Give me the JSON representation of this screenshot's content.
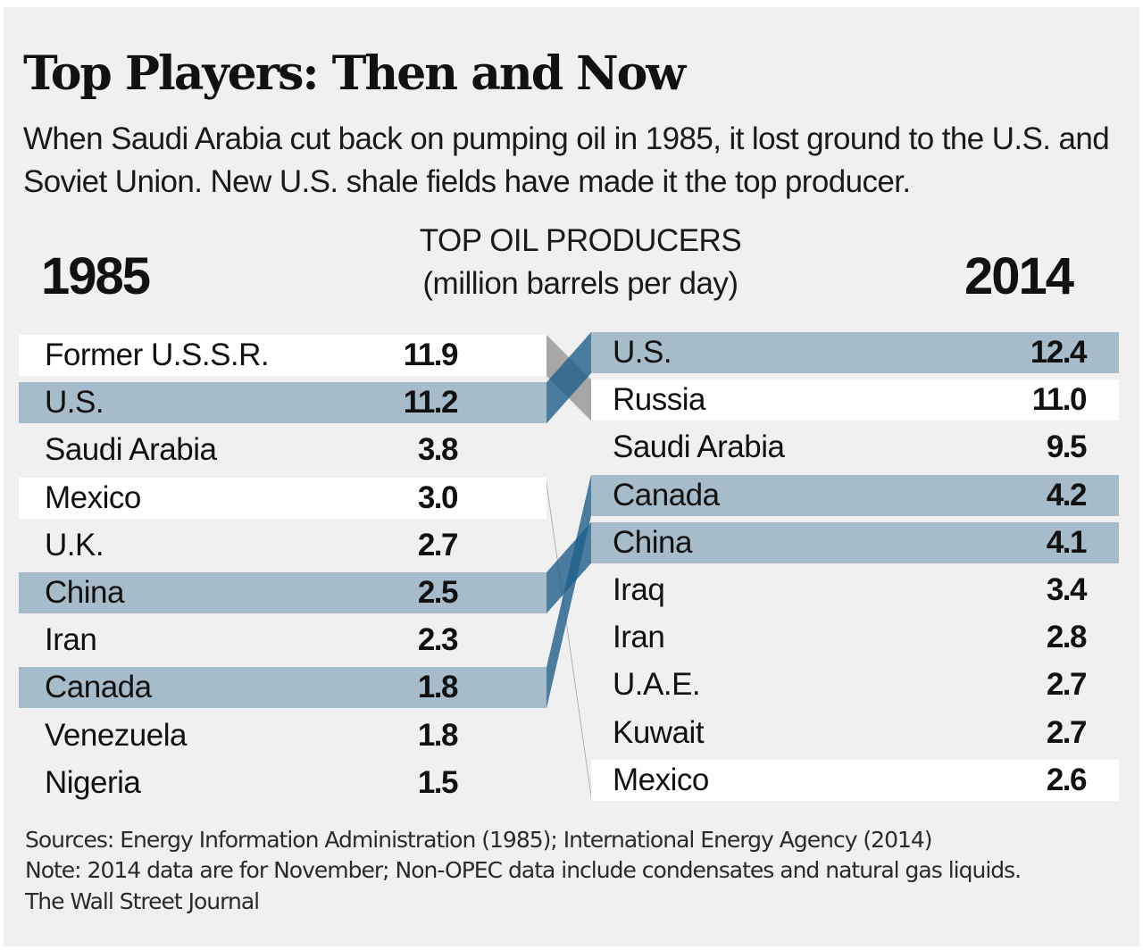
{
  "title": "Top Players: Then and Now",
  "subtitle": "When Saudi Arabia cut back on pumping oil in 1985, it lost ground to the U.S. and Soviet Union. New U.S. shale fields have made it the top producer.",
  "chart_data": {
    "type": "table",
    "title": "TOP OIL PRODUCERS",
    "unit": "(million barrels per day)",
    "left_year": "1985",
    "right_year": "2014",
    "left": [
      {
        "name": "Former U.S.S.R.",
        "value": "11.9",
        "style": "white"
      },
      {
        "name": "U.S.",
        "value": "11.2",
        "style": "blue"
      },
      {
        "name": "Saudi Arabia",
        "value": "3.8",
        "style": "none"
      },
      {
        "name": "Mexico",
        "value": "3.0",
        "style": "white"
      },
      {
        "name": "U.K.",
        "value": "2.7",
        "style": "none"
      },
      {
        "name": "China",
        "value": "2.5",
        "style": "blue"
      },
      {
        "name": "Iran",
        "value": "2.3",
        "style": "none"
      },
      {
        "name": "Canada",
        "value": "1.8",
        "style": "blue"
      },
      {
        "name": "Venezuela",
        "value": "1.8",
        "style": "none"
      },
      {
        "name": "Nigeria",
        "value": "1.5",
        "style": "none"
      }
    ],
    "right": [
      {
        "name": "U.S.",
        "value": "12.4",
        "style": "blue"
      },
      {
        "name": "Russia",
        "value": "11.0",
        "style": "white"
      },
      {
        "name": "Saudi Arabia",
        "value": "9.5",
        "style": "none"
      },
      {
        "name": "Canada",
        "value": "4.2",
        "style": "blue"
      },
      {
        "name": "China",
        "value": "4.1",
        "style": "blue"
      },
      {
        "name": "Iraq",
        "value": "3.4",
        "style": "none"
      },
      {
        "name": "Iran",
        "value": "2.8",
        "style": "none"
      },
      {
        "name": "U.A.E.",
        "value": "2.7",
        "style": "none"
      },
      {
        "name": "Kuwait",
        "value": "2.7",
        "style": "none"
      },
      {
        "name": "Mexico",
        "value": "2.6",
        "style": "white"
      }
    ],
    "links": [
      {
        "from": 0,
        "to": 1,
        "color": "gray"
      },
      {
        "from": 1,
        "to": 0,
        "color": "blue"
      },
      {
        "from": 3,
        "to": 9,
        "color": "gray"
      },
      {
        "from": 5,
        "to": 4,
        "color": "blue"
      },
      {
        "from": 7,
        "to": 3,
        "color": "blue"
      }
    ]
  },
  "colors": {
    "panel": "#f0f0f0",
    "highlight_blue": "#a7bccb",
    "white_row": "#ffffff",
    "link_blue": "#1f5f8b",
    "link_gray": "#9a9a9a"
  },
  "footer": {
    "sources": "Sources:  Energy Information Administration (1985); International Energy Agency (2014)",
    "note": "Note: 2014 data are for November; Non-OPEC data include condensates and natural gas liquids.",
    "credit": "The Wall Street Journal"
  }
}
